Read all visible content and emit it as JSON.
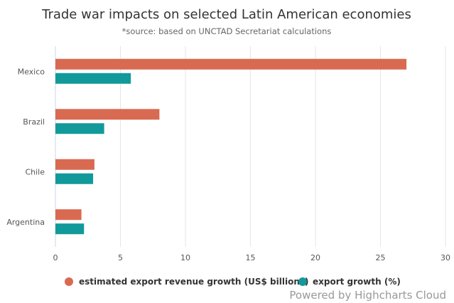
{
  "chart_data": {
    "type": "bar",
    "orientation": "horizontal",
    "title": "Trade war impacts on selected Latin American economies",
    "subtitle": "*source: based on UNCTAD Secretariat calculations",
    "categories": [
      "Mexico",
      "Brazil",
      "Chile",
      "Argentina"
    ],
    "series": [
      {
        "name": "estimated export revenue growth (US$ billions)",
        "color": "#d96a52",
        "values": [
          27,
          8,
          3,
          2
        ]
      },
      {
        "name": "export growth (%)",
        "color": "#12999a",
        "values": [
          5.8,
          3.75,
          2.9,
          2.2
        ]
      }
    ],
    "xlim": [
      0,
      30
    ],
    "xticks": [
      0,
      5,
      10,
      15,
      20,
      25,
      30
    ],
    "grid": true,
    "legend_placement": "bottom"
  },
  "credit": "Powered by Highcharts Cloud"
}
